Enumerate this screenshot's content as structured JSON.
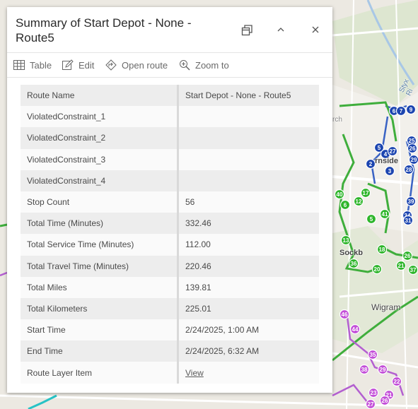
{
  "popup": {
    "title": "Summary of Start Depot - None - Route5",
    "toolbar": {
      "table": "Table",
      "edit": "Edit",
      "open_route": "Open route",
      "zoom_to": "Zoom to"
    },
    "rows": [
      {
        "key": "Route Name",
        "value": "Start Depot - None - Route5"
      },
      {
        "key": "ViolatedConstraint_1",
        "value": ""
      },
      {
        "key": "ViolatedConstraint_2",
        "value": ""
      },
      {
        "key": "ViolatedConstraint_3",
        "value": ""
      },
      {
        "key": "ViolatedConstraint_4",
        "value": ""
      },
      {
        "key": "Stop Count",
        "value": "56"
      },
      {
        "key": "Total Time (Minutes)",
        "value": "332.46"
      },
      {
        "key": "Total Service Time (Minutes)",
        "value": "112.00"
      },
      {
        "key": "Total Travel Time (Minutes)",
        "value": "220.46"
      },
      {
        "key": "Total Miles",
        "value": "139.81"
      },
      {
        "key": "Total Kilometers",
        "value": "225.01"
      },
      {
        "key": "Start Time",
        "value": "2/24/2025, 1:00 AM"
      },
      {
        "key": "End Time",
        "value": "2/24/2025, 6:32 AM"
      },
      {
        "key": "Route Layer Item",
        "value": "View"
      }
    ]
  },
  "map": {
    "labels": {
      "wigram": "Wigram",
      "burnside": "rnside",
      "sockburn": "Sockb",
      "church": "rch",
      "styx": "Styx Ri"
    },
    "blue_stops": [
      "6",
      "7",
      "9",
      "5",
      "4",
      "2",
      "27",
      "25",
      "26",
      "29",
      "28",
      "3",
      "39",
      "34",
      "31"
    ],
    "green_stops": [
      "40",
      "17",
      "6",
      "12",
      "41",
      "5",
      "13",
      "18",
      "36",
      "20",
      "21",
      "26",
      "37"
    ],
    "purple_stops": [
      "46",
      "44",
      "35",
      "29",
      "38",
      "22",
      "21",
      "23",
      "26",
      "27"
    ],
    "colors": {
      "blue_route": "#3a63c4",
      "green_route": "#3fae3c",
      "purple_route": "#b35fd0",
      "blue_stop": "#1c45b0",
      "green_stop": "#2db52a",
      "purple_stop": "#c34fd8"
    }
  }
}
